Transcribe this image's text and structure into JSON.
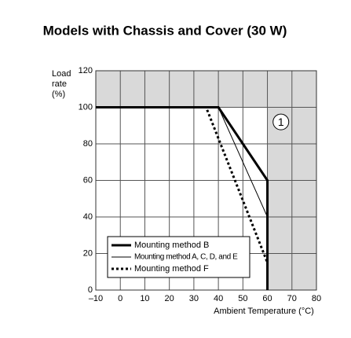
{
  "chart_data": {
    "type": "line",
    "title": "Models with Chassis and Cover (30 W)",
    "ylabel": [
      "Load",
      "rate",
      "(%)"
    ],
    "xlabel": "Ambient Temperature (°C)",
    "annotation": "1",
    "xlim": [
      -10,
      80
    ],
    "xticks": [
      {
        "value": -10,
        "label": "–10"
      },
      0,
      10,
      20,
      30,
      40,
      50,
      60,
      70,
      80
    ],
    "ylim": [
      0,
      120
    ],
    "yticks": [
      0,
      20,
      40,
      60,
      80,
      100,
      120
    ],
    "grid": true,
    "shaded_region": {
      "x_from": 60,
      "y_from": 100
    },
    "legend": "lower left",
    "series": [
      {
        "name": "Mounting method B",
        "color": "#000000",
        "line_width": 3,
        "dash": false,
        "x": [
          -10,
          40,
          50,
          60,
          60
        ],
        "values": [
          100,
          100,
          80,
          60,
          0
        ]
      },
      {
        "name": "Mounting method A, C, D, and E",
        "color": "#000000",
        "line_width": 1,
        "dash": false,
        "x": [
          -10,
          40,
          60
        ],
        "values": [
          100,
          100,
          40
        ]
      },
      {
        "name": "Mounting method F",
        "color": "#000000",
        "line_width": 3,
        "dash": true,
        "x": [
          -10,
          35,
          60
        ],
        "values": [
          100,
          100,
          15
        ]
      }
    ]
  }
}
